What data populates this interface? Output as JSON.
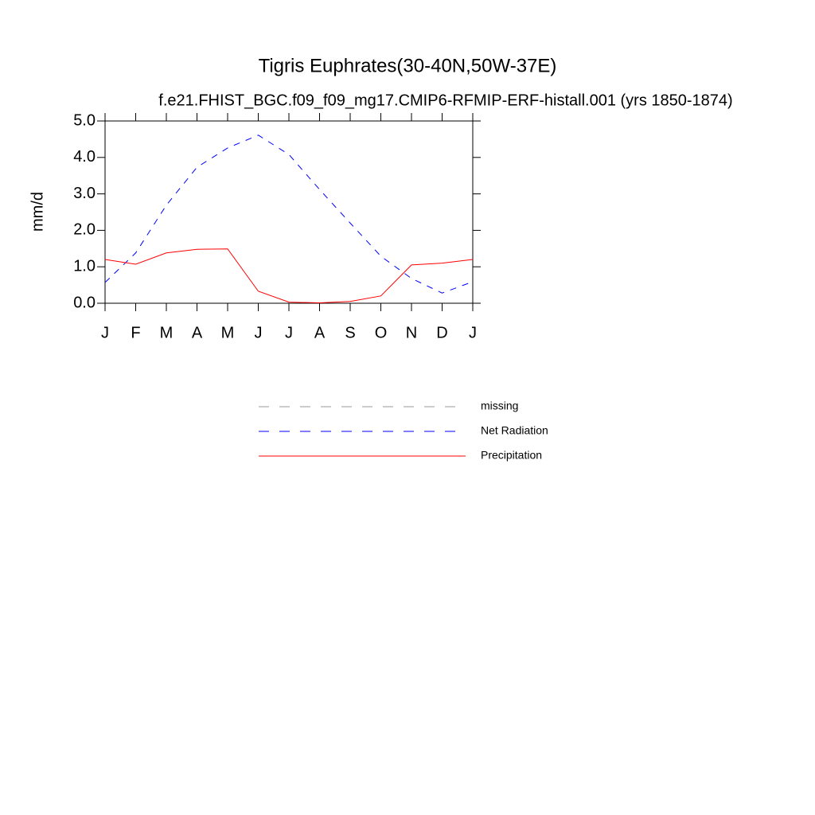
{
  "chart_data": {
    "type": "line",
    "title": "Tigris Euphrates(30-40N,50W-37E)",
    "subtitle": "f.e21.FHIST_BGC.f09_f09_mg17.CMIP6-RFMIP-ERF-histall.001 (yrs 1850-1874)",
    "ylabel": "mm/d",
    "categories": [
      "J",
      "F",
      "M",
      "A",
      "M",
      "J",
      "J",
      "A",
      "S",
      "O",
      "N",
      "D",
      "J"
    ],
    "series": [
      {
        "name": "missing",
        "color": "#999999",
        "linestyle": "dashed",
        "values": [
          null,
          null,
          null,
          null,
          null,
          null,
          null,
          null,
          null,
          null,
          null,
          null,
          null
        ]
      },
      {
        "name": "Net Radiation",
        "color": "#0000ff",
        "linestyle": "dashed",
        "values": [
          0.57,
          1.38,
          2.69,
          3.73,
          4.26,
          4.61,
          4.08,
          3.12,
          2.2,
          1.29,
          0.68,
          0.28,
          0.59
        ]
      },
      {
        "name": "Precipitation",
        "color": "#ff0000",
        "linestyle": "solid",
        "values": [
          1.2,
          1.07,
          1.38,
          1.48,
          1.49,
          0.33,
          0.03,
          0.01,
          0.05,
          0.2,
          1.05,
          1.1,
          1.2
        ]
      }
    ],
    "ylim": [
      0,
      5
    ],
    "yticks": [
      {
        "value": 0,
        "label": "0.0"
      },
      {
        "value": 1,
        "label": "1.0"
      },
      {
        "value": 2,
        "label": "2.0"
      },
      {
        "value": 3,
        "label": "3.0"
      },
      {
        "value": 4,
        "label": "4.0"
      },
      {
        "value": 5,
        "label": "5.0"
      }
    ],
    "grid": false
  }
}
